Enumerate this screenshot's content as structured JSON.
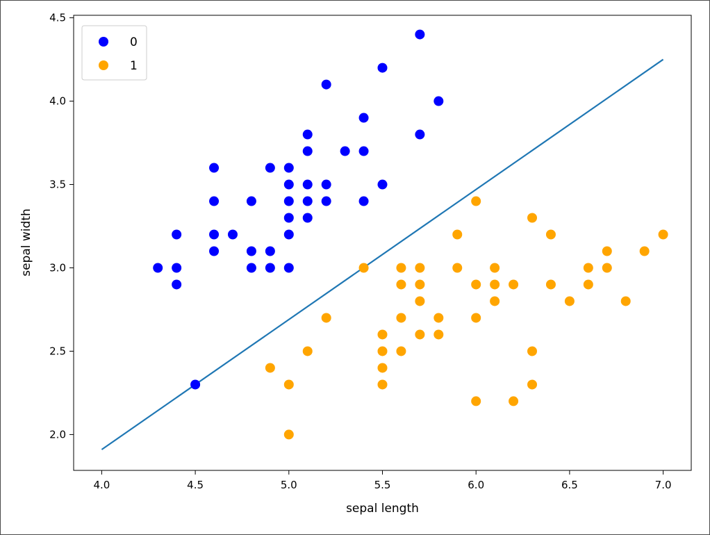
{
  "chart_data": {
    "type": "scatter",
    "title": "",
    "xlabel": "sepal length",
    "ylabel": "sepal width",
    "xlim": [
      3.85,
      7.15
    ],
    "ylim": [
      1.785,
      4.515
    ],
    "xticks": [
      "4.0",
      "4.5",
      "5.0",
      "5.5",
      "6.0",
      "6.5",
      "7.0"
    ],
    "yticks": [
      "2.0",
      "2.5",
      "3.0",
      "3.5",
      "4.0",
      "4.5"
    ],
    "grid": false,
    "legend_position": "top-left",
    "series": [
      {
        "name": "0",
        "color": "#0000ff",
        "points": [
          [
            5.7,
            4.4
          ],
          [
            5.5,
            4.2
          ],
          [
            5.2,
            4.1
          ],
          [
            5.8,
            4.0
          ],
          [
            5.4,
            3.9
          ],
          [
            5.1,
            3.8
          ],
          [
            5.7,
            3.8
          ],
          [
            5.1,
            3.7
          ],
          [
            5.3,
            3.7
          ],
          [
            5.4,
            3.7
          ],
          [
            4.6,
            3.6
          ],
          [
            4.9,
            3.6
          ],
          [
            5.0,
            3.6
          ],
          [
            5.0,
            3.5
          ],
          [
            5.1,
            3.5
          ],
          [
            5.2,
            3.5
          ],
          [
            5.5,
            3.5
          ],
          [
            4.6,
            3.4
          ],
          [
            4.8,
            3.4
          ],
          [
            5.0,
            3.4
          ],
          [
            5.1,
            3.4
          ],
          [
            5.2,
            3.4
          ],
          [
            5.4,
            3.4
          ],
          [
            5.0,
            3.3
          ],
          [
            5.1,
            3.3
          ],
          [
            4.4,
            3.2
          ],
          [
            4.6,
            3.2
          ],
          [
            4.7,
            3.2
          ],
          [
            5.0,
            3.2
          ],
          [
            4.6,
            3.1
          ],
          [
            4.8,
            3.1
          ],
          [
            4.9,
            3.1
          ],
          [
            4.3,
            3.0
          ],
          [
            4.4,
            3.0
          ],
          [
            4.8,
            3.0
          ],
          [
            4.9,
            3.0
          ],
          [
            5.0,
            3.0
          ],
          [
            4.4,
            2.9
          ],
          [
            4.5,
            2.3
          ]
        ]
      },
      {
        "name": "1",
        "color": "#ffa500",
        "points": [
          [
            6.0,
            3.4
          ],
          [
            6.3,
            3.3
          ],
          [
            5.9,
            3.2
          ],
          [
            6.4,
            3.2
          ],
          [
            7.0,
            3.2
          ],
          [
            6.7,
            3.1
          ],
          [
            6.9,
            3.1
          ],
          [
            5.4,
            3.0
          ],
          [
            5.6,
            3.0
          ],
          [
            5.7,
            3.0
          ],
          [
            5.9,
            3.0
          ],
          [
            6.1,
            3.0
          ],
          [
            6.6,
            3.0
          ],
          [
            6.7,
            3.0
          ],
          [
            5.6,
            2.9
          ],
          [
            5.7,
            2.9
          ],
          [
            6.0,
            2.9
          ],
          [
            6.1,
            2.9
          ],
          [
            6.2,
            2.9
          ],
          [
            6.4,
            2.9
          ],
          [
            6.6,
            2.9
          ],
          [
            5.7,
            2.8
          ],
          [
            6.1,
            2.8
          ],
          [
            6.5,
            2.8
          ],
          [
            6.8,
            2.8
          ],
          [
            5.2,
            2.7
          ],
          [
            5.6,
            2.7
          ],
          [
            5.8,
            2.7
          ],
          [
            6.0,
            2.7
          ],
          [
            5.5,
            2.6
          ],
          [
            5.7,
            2.6
          ],
          [
            5.8,
            2.6
          ],
          [
            5.1,
            2.5
          ],
          [
            5.5,
            2.5
          ],
          [
            5.6,
            2.5
          ],
          [
            6.3,
            2.5
          ],
          [
            4.9,
            2.4
          ],
          [
            5.5,
            2.4
          ],
          [
            5.0,
            2.3
          ],
          [
            5.5,
            2.3
          ],
          [
            6.3,
            2.3
          ],
          [
            6.0,
            2.2
          ],
          [
            6.2,
            2.2
          ],
          [
            5.0,
            2.0
          ]
        ]
      }
    ],
    "line": {
      "color": "#1f77b4",
      "points": [
        [
          4.0,
          1.91
        ],
        [
          7.0,
          4.25
        ]
      ]
    }
  }
}
